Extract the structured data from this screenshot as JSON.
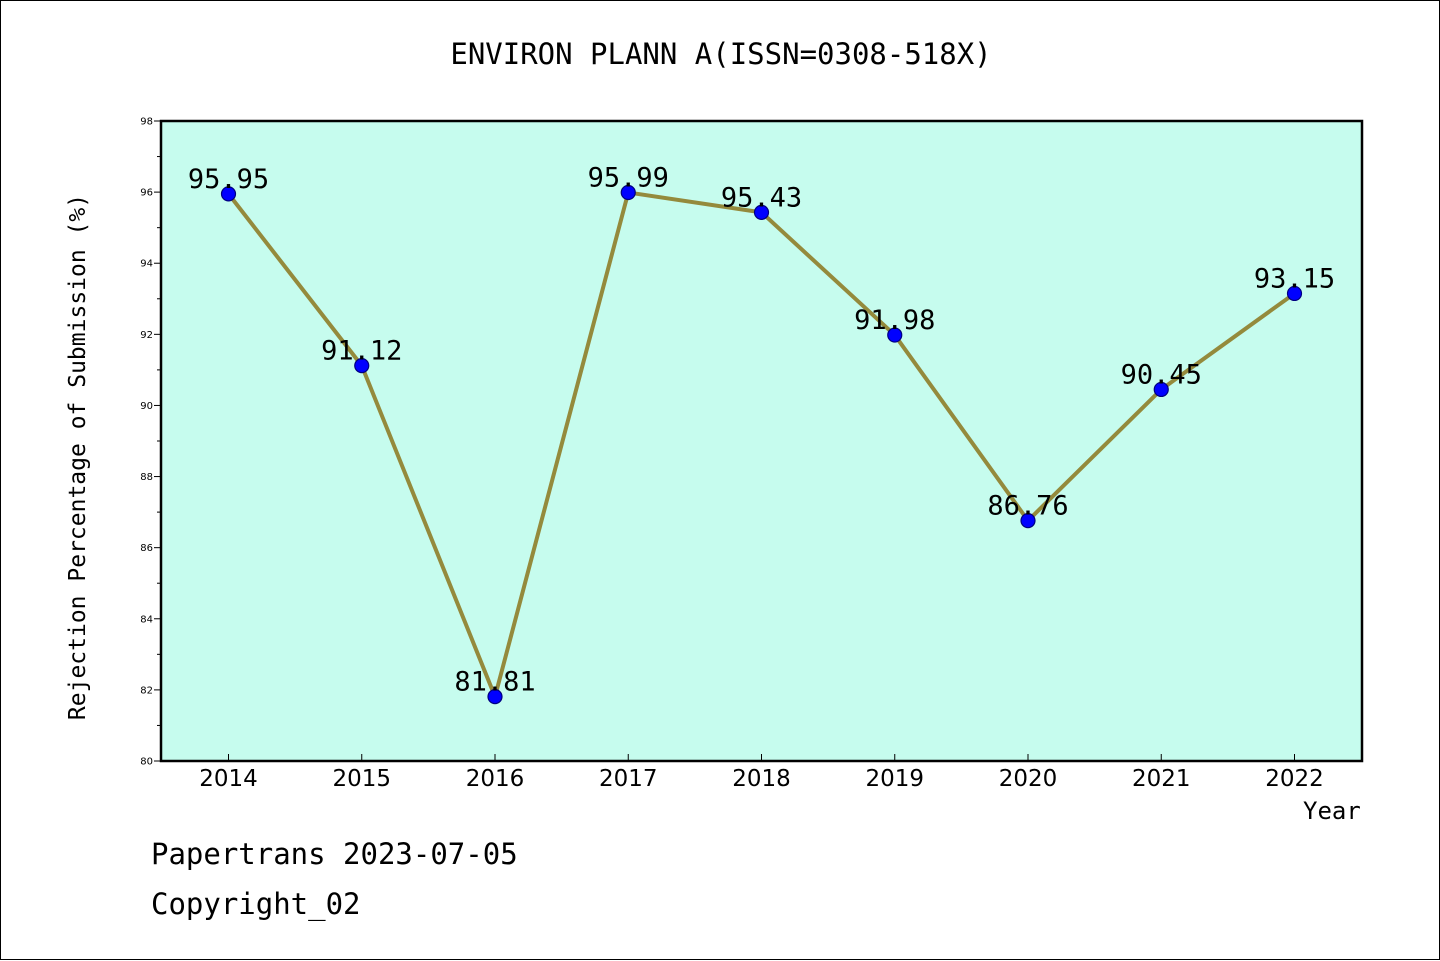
{
  "chart_data": {
    "type": "line",
    "title": "ENVIRON PLANN A(ISSN=0308-518X)",
    "xlabel": "Year",
    "ylabel": "Rejection Percentage of Submission (%)",
    "categories": [
      "2014",
      "2015",
      "2016",
      "2017",
      "2018",
      "2019",
      "2020",
      "2021",
      "2022"
    ],
    "values": [
      95.95,
      91.12,
      81.81,
      95.99,
      95.43,
      91.98,
      86.76,
      90.45,
      93.15
    ],
    "data_labels": [
      "95.95",
      "91.12",
      "81.81",
      "95.99",
      "95.43",
      "91.98",
      "86.76",
      "90.45",
      "93.15"
    ],
    "ylim": [
      80,
      98
    ],
    "yticks": [
      80,
      82,
      84,
      86,
      88,
      90,
      92,
      94,
      96,
      98
    ],
    "grid": false,
    "legend": "none",
    "colors": {
      "plot_background": "#c6fcee",
      "line": "#948a3c",
      "marker": "#0000ff",
      "marker_edge": "#000080"
    }
  },
  "footer": {
    "date_line": "Papertrans 2023-07-05",
    "copyright_line": "Copyright_02"
  }
}
